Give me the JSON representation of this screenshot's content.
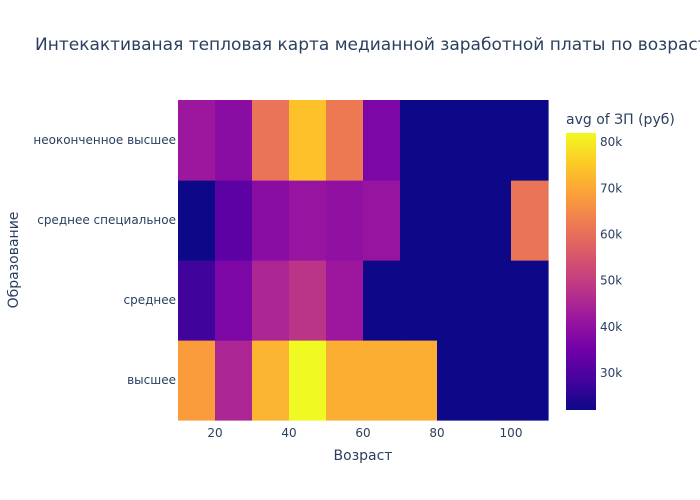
{
  "chart_data": {
    "type": "heatmap",
    "title": "Интекактиваная тепловая карта медианной заработной платы по возрасту",
    "xlabel": "Возраст",
    "ylabel": "Образование",
    "x_bins": [
      10,
      20,
      30,
      40,
      50,
      60,
      70,
      80,
      90,
      100,
      110
    ],
    "xlim": [
      10,
      110
    ],
    "x_ticks": [
      20,
      40,
      60,
      80,
      100
    ],
    "x_tick_labels": [
      "20",
      "40",
      "60",
      "80",
      "100"
    ],
    "y_categories": [
      "высшее",
      "среднее",
      "среднее специальное",
      "неоконченное высшее"
    ],
    "z": [
      [
        68000,
        45000,
        72000,
        82000,
        71000,
        71000,
        71000,
        22000,
        22000,
        22000
      ],
      [
        28000,
        37000,
        45000,
        48000,
        42000,
        22000,
        22000,
        22000,
        22000,
        22000
      ],
      [
        22000,
        32000,
        39000,
        41000,
        40000,
        41000,
        22000,
        22000,
        22000,
        61000
      ],
      [
        42000,
        39000,
        61000,
        74000,
        62000,
        37000,
        22000,
        22000,
        22000,
        22000
      ]
    ],
    "colorbar": {
      "title": "avg of ЗП (руб)",
      "zmin": 22000,
      "zmax": 82000,
      "ticks": [
        30000,
        40000,
        50000,
        60000,
        70000,
        80000
      ],
      "tick_labels": [
        "30k",
        "40k",
        "50k",
        "60k",
        "70k",
        "80k"
      ]
    },
    "colorscale": [
      "#0d0887",
      "#46039f",
      "#7201a8",
      "#9c179e",
      "#bd3786",
      "#d8576b",
      "#ed7953",
      "#fb9f3a",
      "#fdca26",
      "#f0f921"
    ]
  }
}
